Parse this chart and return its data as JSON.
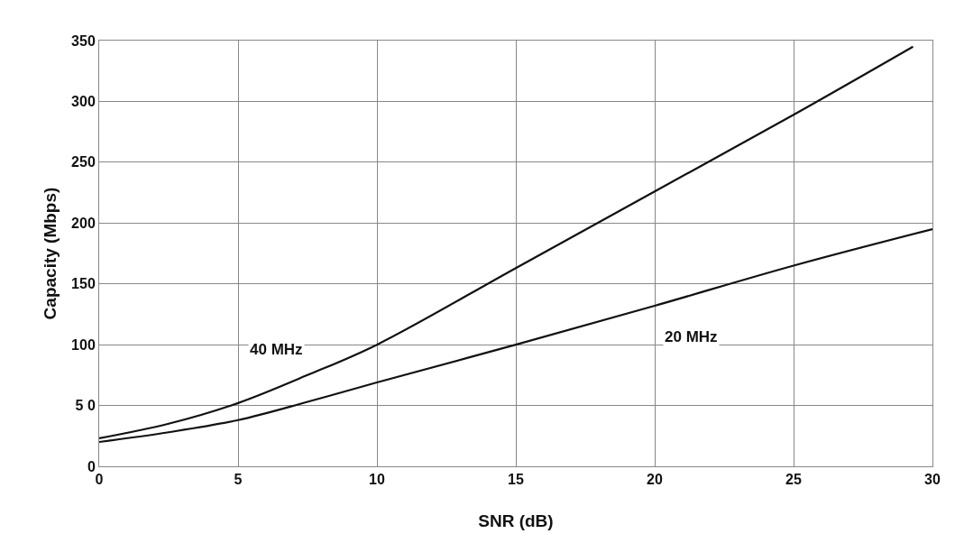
{
  "chart_data": {
    "type": "line",
    "xlabel": "SNR (dB)",
    "ylabel": "Capacity (Mbps)",
    "x": [
      0,
      2.5,
      5,
      7.5,
      10,
      15,
      20,
      25,
      29.3
    ],
    "series": [
      {
        "name": "40 MHz",
        "color": "#111111",
        "values": [
          23,
          35,
          52,
          75,
          100,
          163,
          226,
          289,
          345
        ]
      },
      {
        "name": "20 MHz",
        "color": "#111111",
        "x": [
          0,
          2.5,
          5,
          7.5,
          10,
          15,
          20,
          25,
          30
        ],
        "values": [
          20,
          28,
          38,
          53,
          69,
          100,
          132,
          165,
          195
        ]
      }
    ],
    "xlim": [
      0,
      30
    ],
    "xticks": [
      0,
      5,
      10,
      15,
      20,
      25,
      30
    ],
    "ylim": [
      0,
      350
    ],
    "yticks": [
      0,
      {
        "value": 50,
        "label": "5 0"
      },
      100,
      150,
      200,
      250,
      300,
      350
    ],
    "grid": true,
    "legend": false,
    "marker": "none",
    "line_style": "solid"
  }
}
